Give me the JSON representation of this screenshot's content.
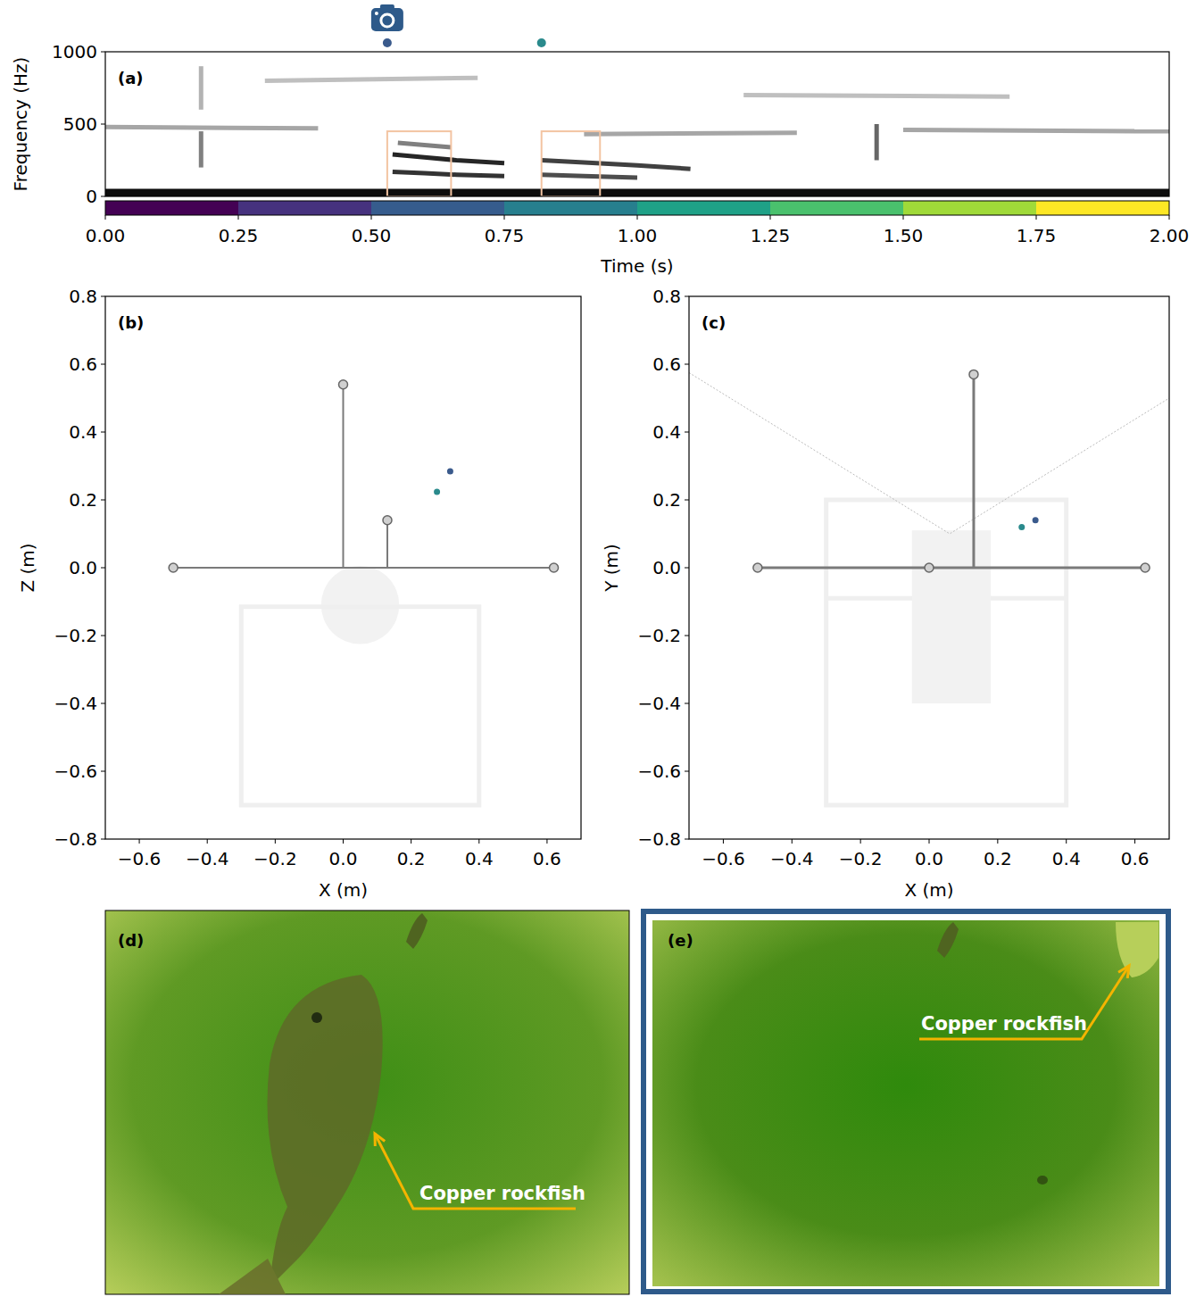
{
  "chart_data": [
    {
      "type": "spectrogram",
      "label": "(a)",
      "xlabel": "Time (s)",
      "ylabel": "Frequency (Hz)",
      "xlim": [
        0,
        2
      ],
      "ylim": [
        0,
        1000
      ],
      "xticks": [
        {
          "value": 0,
          "label": "0.00"
        },
        0.25,
        {
          "value": 0.5,
          "label": "0.50"
        },
        0.75,
        {
          "value": 1,
          "label": "1.00"
        },
        1.25,
        {
          "value": 1.5,
          "label": "1.50"
        },
        1.75,
        {
          "value": 2,
          "label": "2.00"
        }
      ],
      "yticks": [
        0,
        500,
        1000
      ],
      "contours": [
        {
          "x": [
            0,
            2
          ],
          "y": [
            25,
            25
          ],
          "intensity": 0.95
        },
        {
          "x": [
            0.54,
            0.6,
            0.66,
            0.75
          ],
          "y": [
            290,
            270,
            250,
            230
          ],
          "intensity": 0.85
        },
        {
          "x": [
            0.54,
            0.6,
            0.66,
            0.75
          ],
          "y": [
            170,
            160,
            150,
            140
          ],
          "intensity": 0.8
        },
        {
          "x": [
            0.55,
            0.65
          ],
          "y": [
            370,
            340
          ],
          "intensity": 0.5
        },
        {
          "x": [
            0.82,
            0.9,
            1.0,
            1.1
          ],
          "y": [
            250,
            235,
            215,
            190
          ],
          "intensity": 0.75
        },
        {
          "x": [
            0.82,
            0.9,
            1.0
          ],
          "y": [
            150,
            140,
            130
          ],
          "intensity": 0.7
        },
        {
          "x": [
            0.18,
            0.18
          ],
          "y": [
            200,
            450
          ],
          "intensity": 0.5
        },
        {
          "x": [
            1.45,
            1.45
          ],
          "y": [
            250,
            500
          ],
          "intensity": 0.6
        },
        {
          "x": [
            0,
            0.4
          ],
          "y": [
            480,
            470
          ],
          "intensity": 0.35
        },
        {
          "x": [
            0.9,
            1.3
          ],
          "y": [
            430,
            440
          ],
          "intensity": 0.35
        },
        {
          "x": [
            1.5,
            2.0
          ],
          "y": [
            460,
            450
          ],
          "intensity": 0.35
        },
        {
          "x": [
            0.3,
            0.7
          ],
          "y": [
            800,
            820
          ],
          "intensity": 0.25
        },
        {
          "x": [
            1.2,
            1.7
          ],
          "y": [
            700,
            690
          ],
          "intensity": 0.25
        },
        {
          "x": [
            0.18,
            0.18
          ],
          "y": [
            600,
            900
          ],
          "intensity": 0.3
        }
      ],
      "detections": [
        {
          "start": 0.53,
          "end": 0.65,
          "low": 0,
          "high": 450,
          "color": "#3a5a8c",
          "photo": true
        },
        {
          "start": 0.82,
          "end": 0.93,
          "low": 0,
          "high": 450,
          "color": "#2a8a8c",
          "photo": false
        }
      ],
      "color_bar": {
        "bins": [
          0,
          0.25,
          0.5,
          0.75,
          1,
          1.25,
          1.5,
          1.75,
          2
        ],
        "colors": [
          "#440154",
          "#46327e",
          "#365c8d",
          "#277f8e",
          "#1fa187",
          "#4ac16d",
          "#a0da39",
          "#fde725"
        ]
      }
    },
    {
      "type": "array_geometry",
      "label": "(b)",
      "xlabel": "X (m)",
      "ylabel": "Z (m)",
      "xlim": [
        -0.7,
        0.7
      ],
      "ylim": [
        -0.8,
        0.8
      ],
      "xticks": [
        {
          "value": -0.6,
          "label": "−0.6"
        },
        {
          "value": -0.4,
          "label": "−0.4"
        },
        {
          "value": -0.2,
          "label": "−0.2"
        },
        {
          "value": 0,
          "label": "0.0"
        },
        0.2,
        0.4,
        0.6
      ],
      "yticks": [
        {
          "value": -0.8,
          "label": "−0.8"
        },
        {
          "value": -0.6,
          "label": "−0.6"
        },
        {
          "value": -0.4,
          "label": "−0.4"
        },
        {
          "value": -0.2,
          "label": "−0.2"
        },
        {
          "value": 0,
          "label": "0.0"
        },
        0.2,
        0.4,
        0.6,
        0.8
      ],
      "shapes": [
        {
          "type": "circle",
          "cx": 0.05,
          "cy": -0.11,
          "r": 0.115
        },
        {
          "type": "rect",
          "x": [
            -0.3,
            0.4
          ],
          "y": [
            -0.7,
            -0.115
          ]
        }
      ],
      "cables": [
        [
          -0.5,
          0,
          0.62,
          0
        ],
        [
          0,
          0,
          0,
          0.54
        ],
        [
          0.13,
          0,
          0.13,
          0.14
        ]
      ],
      "hydrophones": {
        "x": [
          -0.5,
          0.62,
          0,
          0.13
        ],
        "y": [
          0,
          0,
          0.54,
          0.14
        ]
      },
      "localizations": {
        "x": [
          0.315,
          0.276
        ],
        "y": [
          0.284,
          0.224
        ],
        "colors": [
          "#3a5a8c",
          "#2a8a8c"
        ]
      }
    },
    {
      "type": "array_geometry",
      "label": "(c)",
      "xlabel": "X (m)",
      "ylabel": "Y (m)",
      "xlim": [
        -0.7,
        0.7
      ],
      "ylim": [
        -0.8,
        0.8
      ],
      "xticks": [
        {
          "value": -0.6,
          "label": "−0.6"
        },
        {
          "value": -0.4,
          "label": "−0.4"
        },
        {
          "value": -0.2,
          "label": "−0.2"
        },
        {
          "value": 0,
          "label": "0.0"
        },
        0.2,
        0.4,
        0.6
      ],
      "yticks": [
        {
          "value": -0.8,
          "label": "−0.8"
        },
        {
          "value": -0.6,
          "label": "−0.6"
        },
        {
          "value": -0.4,
          "label": "−0.4"
        },
        {
          "value": -0.2,
          "label": "−0.2"
        },
        {
          "value": 0,
          "label": "0.0"
        },
        0.2,
        0.4,
        0.6,
        0.8
      ],
      "shapes": [
        {
          "type": "rect",
          "x": [
            -0.3,
            0.4
          ],
          "y": [
            -0.7,
            0.2
          ]
        },
        {
          "type": "line",
          "x": [
            -0.3,
            0.4
          ],
          "y": [
            -0.09,
            -0.09
          ]
        },
        {
          "type": "filled_rect",
          "x": [
            -0.05,
            0.18
          ],
          "y": [
            -0.4,
            0.11
          ]
        }
      ],
      "fov": {
        "x": [
          -0.7,
          0.06,
          0.7
        ],
        "y": [
          0.575,
          0.1,
          0.5
        ]
      },
      "cables": [
        [
          -0.5,
          0,
          0.63,
          0
        ],
        [
          0.13,
          0,
          0.13,
          0.57
        ]
      ],
      "hydrophones": {
        "x": [
          -0.5,
          0,
          0.13,
          0.63
        ],
        "y": [
          0,
          0,
          0.57,
          0
        ]
      },
      "localizations": {
        "x": [
          0.31,
          0.27
        ],
        "y": [
          0.14,
          0.12
        ],
        "colors": [
          "#3a5a8c",
          "#2a8a8c"
        ]
      }
    }
  ],
  "images": [
    {
      "label": "(d)",
      "annotation": "Copper rockfish"
    },
    {
      "label": "(e)",
      "annotation": "Copper rockfish"
    }
  ]
}
